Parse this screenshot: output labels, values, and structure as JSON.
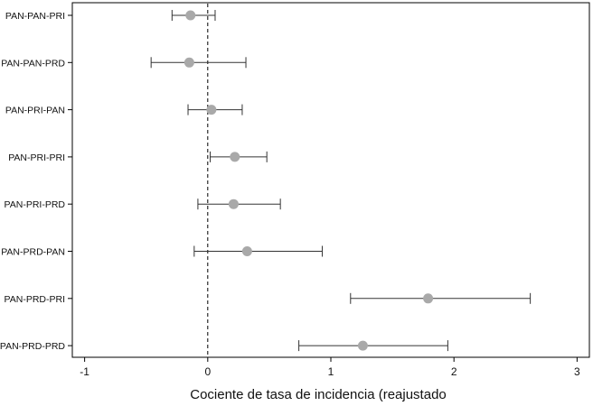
{
  "chart_data": {
    "type": "forest",
    "xlabel": "Cociente de tasa de incidencia (reajustado",
    "xlim": [
      -1.1,
      3.1
    ],
    "xticks": [
      -1,
      0,
      1,
      2,
      3
    ],
    "xtick_labels": [
      "-1",
      "0",
      "1",
      "2",
      "3"
    ],
    "reference_line": 0,
    "grid": false,
    "colors": {
      "point": "#a9a9a9",
      "whisker": "#333333",
      "reference": "#000000"
    },
    "categories": [
      "PAN-PAN-PRI",
      "PAN-PAN-PRD",
      "PAN-PRI-PAN",
      "PAN-PRI-PRI",
      "PAN-PRI-PRD",
      "PAN-PRD-PAN",
      "PAN-PRD-PRI",
      "PAN-PRD-PRD"
    ],
    "estimates": [
      -0.14,
      -0.15,
      0.03,
      0.22,
      0.21,
      0.32,
      1.79,
      1.26
    ],
    "lower": [
      -0.29,
      -0.46,
      -0.16,
      0.02,
      -0.08,
      -0.11,
      1.16,
      0.74
    ],
    "upper": [
      0.06,
      0.31,
      0.28,
      0.48,
      0.59,
      0.93,
      2.62,
      1.95
    ]
  }
}
